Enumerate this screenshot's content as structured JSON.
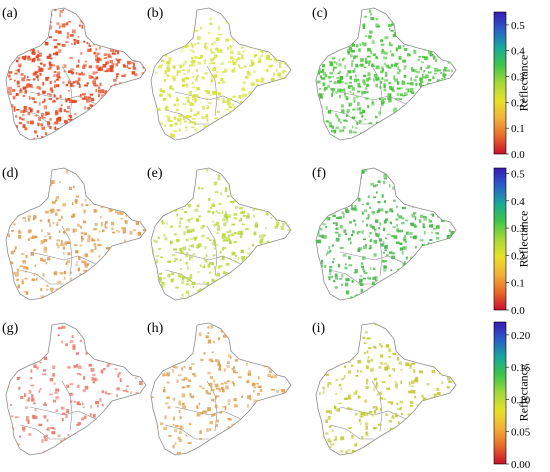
{
  "figure": {
    "panel_labels": [
      "(a)",
      "(b)",
      "(c)",
      "(d)",
      "(e)",
      "(f)",
      "(g)",
      "(h)",
      "(i)"
    ],
    "colorbar_title": "Reflectance",
    "rows": [
      {
        "ticks": [
          "0.5",
          "0.4",
          "0.3",
          "0.2",
          "0.1",
          "0.0"
        ],
        "range": [
          0,
          0.55
        ]
      },
      {
        "ticks": [
          "0.5",
          "0.4",
          "0.3",
          "0.2",
          "0.1",
          "0.0"
        ],
        "range": [
          0,
          0.52
        ]
      },
      {
        "ticks": [
          "0.20",
          "0.15",
          "0.10",
          "0.05",
          "0.00"
        ],
        "range": [
          0,
          0.22
        ]
      }
    ],
    "panel_colors": {
      "a": "#e8451e",
      "b": "#d4e33a",
      "c": "#48c23a",
      "d": "#e09a4a",
      "e": "#b6d83a",
      "f": "#46b848",
      "g": "#e87a6a",
      "h": "#e0a050",
      "i": "#c0c830"
    },
    "colormap": [
      "#c8102e",
      "#e86a2a",
      "#f2b03a",
      "#e8e02a",
      "#a6d83a",
      "#3ec64a",
      "#1aa89a",
      "#2a5ec8",
      "#3a1ab0"
    ],
    "boundary_color": "#8c8c8c"
  }
}
